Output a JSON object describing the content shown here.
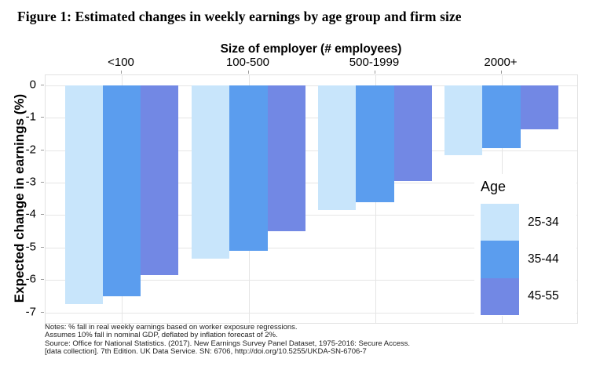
{
  "figure_title": "Figure 1: Estimated changes in weekly earnings by age group and firm size",
  "chart_data": {
    "type": "bar",
    "title": "Size of employer (# employees)",
    "ylabel": "Expected change in earnings (%)",
    "categories": [
      "<100",
      "100-500",
      "500-1999",
      "2000+"
    ],
    "series": [
      {
        "name": "25-34",
        "color": "#C8E5FB",
        "values": [
          -6.75,
          -5.35,
          -3.85,
          -2.15
        ]
      },
      {
        "name": "35-44",
        "color": "#5B9DEE",
        "values": [
          -6.5,
          -5.1,
          -3.6,
          -1.95
        ]
      },
      {
        "name": "45-55",
        "color": "#7288E4",
        "values": [
          -5.85,
          -4.5,
          -2.95,
          -1.35
        ]
      }
    ],
    "ylim": [
      -7,
      0
    ],
    "yticks": [
      "0",
      "-1",
      "-2",
      "-3",
      "-4",
      "-5",
      "-6",
      "-7"
    ],
    "legend_title": "Age",
    "legend_position": "inside-right",
    "grid": true
  },
  "notes": {
    "lines": [
      "Notes: % fall in real weekly earnings based on worker exposure regressions.",
      "Assumes 10% fall in nominal GDP, deflated by inflation forecast of 2%.",
      "Source: Office for National Statistics. (2017). New Earnings Survey Panel Dataset, 1975-2016: Secure Access.",
      "[data collection]. 7th Edition. UK Data Service. SN: 6706, http://doi.org/10.5255/UKDA-SN-6706-7"
    ]
  }
}
